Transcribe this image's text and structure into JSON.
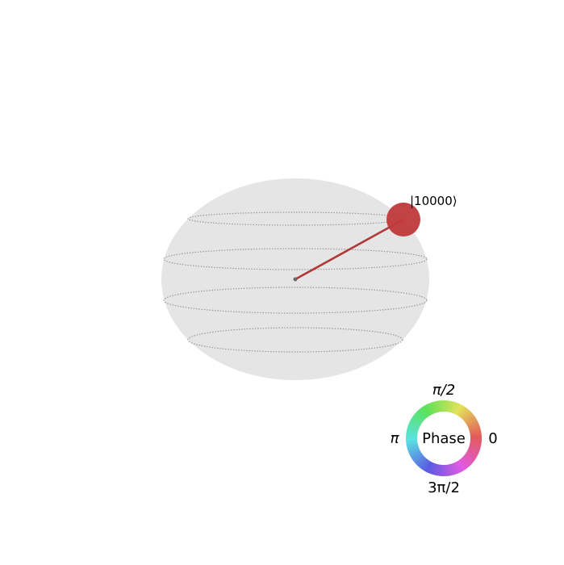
{
  "figure": {
    "state_label": "|10000⟩",
    "state_color": "#c0393b",
    "sphere_color": "#e5e5e5",
    "latitude_color": "#999999"
  },
  "phase_wheel": {
    "center_label": "Phase",
    "label_0": "0",
    "label_pi_over_2": "π/2",
    "label_pi": "π",
    "label_3pi_over_2": "3π/2"
  }
}
